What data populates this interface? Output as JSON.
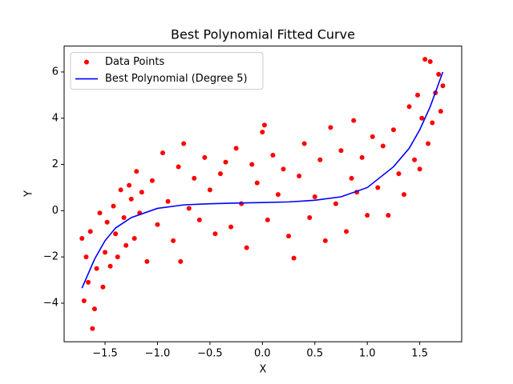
{
  "chart_data": {
    "type": "scatter",
    "title": "Best Polynomial Fitted Curve",
    "xlabel": "X",
    "ylabel": "Y",
    "xlim": [
      -1.89,
      1.9
    ],
    "ylim": [
      -5.67,
      7.12
    ],
    "xticks": [
      {
        "value": -1.5,
        "label": "−1.5"
      },
      {
        "value": -1.0,
        "label": "−1.0"
      },
      {
        "value": -0.5,
        "label": "−0.5"
      },
      {
        "value": 0.0,
        "label": "0.0"
      },
      {
        "value": 0.5,
        "label": "0.5"
      },
      {
        "value": 1.0,
        "label": "1.0"
      },
      {
        "value": 1.5,
        "label": "1.5"
      }
    ],
    "yticks": [
      {
        "value": -4,
        "label": "−4"
      },
      {
        "value": -2,
        "label": "−2"
      },
      0,
      2,
      4,
      6
    ],
    "legend": "upper left",
    "series": [
      {
        "name": "Data Points",
        "type": "scatter",
        "color": "#ff0000",
        "x": [
          -1.72,
          -1.7,
          -1.68,
          -1.66,
          -1.64,
          -1.62,
          -1.6,
          -1.58,
          -1.55,
          -1.52,
          -1.5,
          -1.48,
          -1.45,
          -1.42,
          -1.4,
          -1.38,
          -1.35,
          -1.32,
          -1.3,
          -1.27,
          -1.25,
          -1.22,
          -1.2,
          -1.17,
          -1.15,
          -1.1,
          -1.05,
          -1.0,
          -0.95,
          -0.9,
          -0.85,
          -0.8,
          -0.78,
          -0.75,
          -0.7,
          -0.65,
          -0.6,
          -0.55,
          -0.5,
          -0.45,
          -0.4,
          -0.35,
          -0.3,
          -0.25,
          -0.2,
          -0.15,
          -0.1,
          -0.05,
          0.0,
          0.02,
          0.05,
          0.1,
          0.15,
          0.2,
          0.25,
          0.3,
          0.35,
          0.4,
          0.45,
          0.5,
          0.55,
          0.6,
          0.65,
          0.7,
          0.75,
          0.8,
          0.85,
          0.87,
          0.9,
          0.95,
          1.0,
          1.05,
          1.1,
          1.15,
          1.2,
          1.25,
          1.3,
          1.35,
          1.4,
          1.45,
          1.48,
          1.5,
          1.52,
          1.55,
          1.58,
          1.6,
          1.62,
          1.65,
          1.68,
          1.7,
          1.72
        ],
        "values": [
          -1.2,
          -3.9,
          -2.0,
          -3.1,
          -0.9,
          -5.1,
          -4.25,
          -2.5,
          -0.1,
          -3.3,
          -1.8,
          -0.5,
          -2.4,
          0.2,
          -1.0,
          -2.0,
          0.9,
          -0.3,
          -1.5,
          1.1,
          0.5,
          -1.2,
          1.7,
          -0.1,
          0.8,
          -2.2,
          1.3,
          -0.6,
          2.5,
          0.4,
          -1.3,
          1.9,
          -2.2,
          2.9,
          0.1,
          1.4,
          -0.4,
          2.3,
          0.9,
          -1.0,
          1.6,
          2.1,
          -0.7,
          2.7,
          0.3,
          -1.6,
          2.0,
          1.2,
          3.4,
          3.7,
          -0.4,
          2.4,
          0.7,
          1.8,
          -1.1,
          -2.05,
          1.5,
          2.9,
          -0.3,
          0.6,
          2.2,
          -1.3,
          3.6,
          0.3,
          2.6,
          -0.9,
          1.4,
          3.9,
          0.8,
          2.3,
          -0.2,
          3.2,
          1.0,
          2.8,
          -0.2,
          3.5,
          1.6,
          0.7,
          4.5,
          2.2,
          5.0,
          1.8,
          4.0,
          6.55,
          2.9,
          6.45,
          3.8,
          5.1,
          5.9,
          4.3,
          5.4
        ]
      },
      {
        "name": "Best Polynomial (Degree 5)",
        "type": "line",
        "color": "#0000ff",
        "x": [
          -1.72,
          -1.6,
          -1.5,
          -1.4,
          -1.25,
          -1.0,
          -0.75,
          -0.5,
          -0.25,
          0.0,
          0.25,
          0.5,
          0.75,
          1.0,
          1.25,
          1.4,
          1.5,
          1.6,
          1.72
        ],
        "values": [
          -3.35,
          -2.1,
          -1.3,
          -0.75,
          -0.3,
          0.1,
          0.25,
          0.3,
          0.33,
          0.35,
          0.38,
          0.45,
          0.6,
          1.0,
          1.9,
          2.7,
          3.5,
          4.5,
          6.0
        ]
      }
    ]
  }
}
